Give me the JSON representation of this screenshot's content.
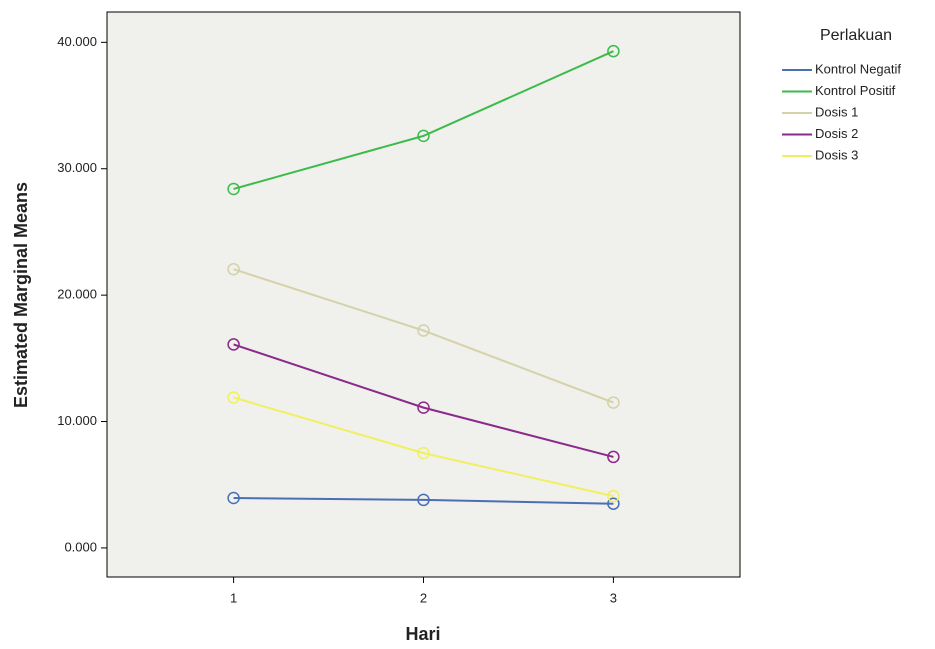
{
  "chart_data": {
    "type": "line",
    "x_label": "Hari",
    "y_label": "Estimated Marginal Means",
    "legend_title": "Perlakuan",
    "legend": "right",
    "grid": false,
    "categories": [
      "1",
      "2",
      "3"
    ],
    "ylim": [
      -2.3,
      42.4
    ],
    "yticks": [
      {
        "value": 0,
        "label": "0.000"
      },
      {
        "value": 10,
        "label": "10.000"
      },
      {
        "value": 20,
        "label": "20.000"
      },
      {
        "value": 30,
        "label": "30.000"
      },
      {
        "value": 40,
        "label": "40.000"
      }
    ],
    "series": [
      {
        "name": "Kontrol Negatif",
        "color": "#4a6fb5",
        "values": [
          3.95,
          3.8,
          3.5
        ]
      },
      {
        "name": "Kontrol Positif",
        "color": "#3dbb4a",
        "values": [
          28.4,
          32.6,
          39.3
        ]
      },
      {
        "name": "Dosis 1",
        "color": "#d4d2a8",
        "values": [
          22.05,
          17.2,
          11.5
        ]
      },
      {
        "name": "Dosis 2",
        "color": "#8b2a8b",
        "values": [
          16.1,
          11.1,
          7.2
        ]
      },
      {
        "name": "Dosis 3",
        "color": "#f0f060",
        "values": [
          11.9,
          7.5,
          4.1
        ]
      }
    ]
  }
}
